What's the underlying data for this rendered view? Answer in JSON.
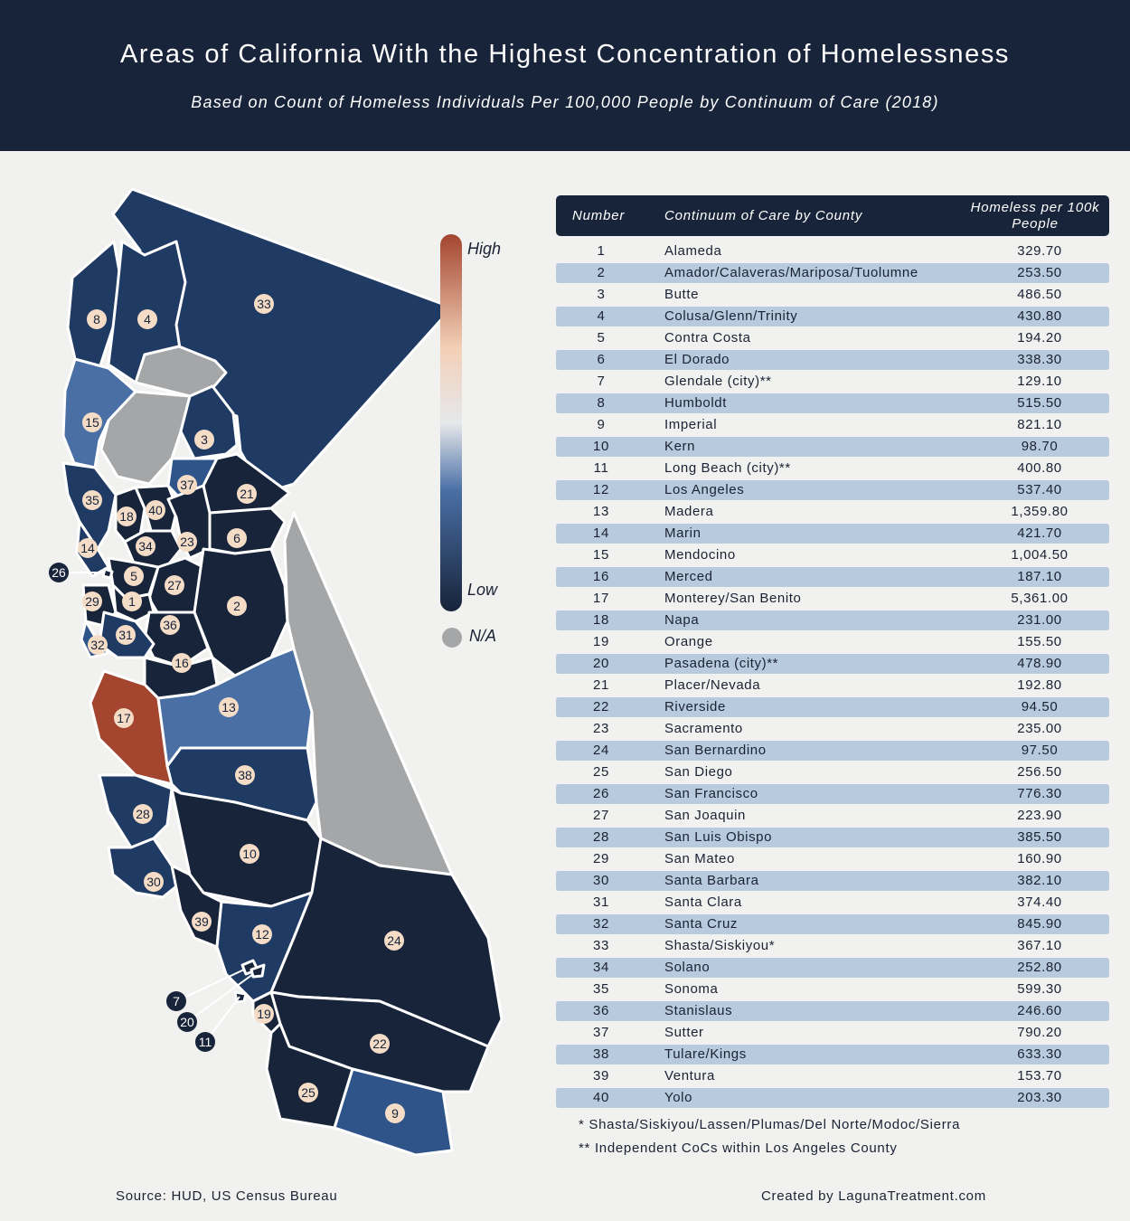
{
  "header": {
    "title": "Areas of California With the Highest Concentration of Homelessness",
    "subtitle": "Based on Count of Homeless Individuals Per 100,000 People by Continuum of Care (2018)"
  },
  "legend": {
    "high_label": "High",
    "low_label": "Low",
    "na_label": "N/A",
    "colors": {
      "high": "#a3452f",
      "peach": "#f3cfb6",
      "neutral": "#e6e8eb",
      "mid": "#4a6fa5",
      "low": "#17243a",
      "na": "#a5a6a8"
    }
  },
  "table": {
    "headers": {
      "number": "Number",
      "county": "Continuum of Care by County",
      "value": "Homeless per 100k People"
    },
    "rows": [
      {
        "number": "1",
        "name": "Alameda",
        "value": "329.70"
      },
      {
        "number": "2",
        "name": "Amador/Calaveras/Mariposa/Tuolumne",
        "value": "253.50"
      },
      {
        "number": "3",
        "name": "Butte",
        "value": "486.50"
      },
      {
        "number": "4",
        "name": "Colusa/Glenn/Trinity",
        "value": "430.80"
      },
      {
        "number": "5",
        "name": "Contra Costa",
        "value": "194.20"
      },
      {
        "number": "6",
        "name": "El Dorado",
        "value": "338.30"
      },
      {
        "number": "7",
        "name": "Glendale (city)**",
        "value": "129.10"
      },
      {
        "number": "8",
        "name": "Humboldt",
        "value": "515.50"
      },
      {
        "number": "9",
        "name": "Imperial",
        "value": "821.10"
      },
      {
        "number": "10",
        "name": "Kern",
        "value": "98.70"
      },
      {
        "number": "11",
        "name": "Long Beach (city)**",
        "value": "400.80"
      },
      {
        "number": "12",
        "name": "Los Angeles",
        "value": "537.40"
      },
      {
        "number": "13",
        "name": "Madera",
        "value": "1,359.80"
      },
      {
        "number": "14",
        "name": "Marin",
        "value": "421.70"
      },
      {
        "number": "15",
        "name": "Mendocino",
        "value": "1,004.50"
      },
      {
        "number": "16",
        "name": "Merced",
        "value": "187.10"
      },
      {
        "number": "17",
        "name": "Monterey/San Benito",
        "value": "5,361.00"
      },
      {
        "number": "18",
        "name": "Napa",
        "value": "231.00"
      },
      {
        "number": "19",
        "name": "Orange",
        "value": "155.50"
      },
      {
        "number": "20",
        "name": "Pasadena (city)**",
        "value": "478.90"
      },
      {
        "number": "21",
        "name": "Placer/Nevada",
        "value": "192.80"
      },
      {
        "number": "22",
        "name": "Riverside",
        "value": "94.50"
      },
      {
        "number": "23",
        "name": "Sacramento",
        "value": "235.00"
      },
      {
        "number": "24",
        "name": "San Bernardino",
        "value": "97.50"
      },
      {
        "number": "25",
        "name": "San Diego",
        "value": "256.50"
      },
      {
        "number": "26",
        "name": "San Francisco",
        "value": "776.30"
      },
      {
        "number": "27",
        "name": "San Joaquin",
        "value": "223.90"
      },
      {
        "number": "28",
        "name": "San Luis Obispo",
        "value": "385.50"
      },
      {
        "number": "29",
        "name": "San Mateo",
        "value": "160.90"
      },
      {
        "number": "30",
        "name": "Santa Barbara",
        "value": "382.10"
      },
      {
        "number": "31",
        "name": "Santa Clara",
        "value": "374.40"
      },
      {
        "number": "32",
        "name": "Santa Cruz",
        "value": "845.90"
      },
      {
        "number": "33",
        "name": "Shasta/Siskiyou*",
        "value": "367.10"
      },
      {
        "number": "34",
        "name": "Solano",
        "value": "252.80"
      },
      {
        "number": "35",
        "name": "Sonoma",
        "value": "599.30"
      },
      {
        "number": "36",
        "name": "Stanislaus",
        "value": "246.60"
      },
      {
        "number": "37",
        "name": "Sutter",
        "value": "790.20"
      },
      {
        "number": "38",
        "name": "Tulare/Kings",
        "value": "633.30"
      },
      {
        "number": "39",
        "name": "Ventura",
        "value": "153.70"
      },
      {
        "number": "40",
        "name": "Yolo",
        "value": "203.30"
      }
    ]
  },
  "notes": {
    "single_star": "* Shasta/Siskiyou/Lassen/Plumas/Del Norte/Modoc/Sierra",
    "double_star": "** Independent CoCs within Los Angeles County"
  },
  "footer": {
    "source": "Source: HUD, US Census Bureau",
    "credit": "Created by LagunaTreatment.com"
  },
  "map": {
    "shade_colors": {
      "dark": "#17243a",
      "navy": "#1f3a63",
      "mid": "#2f5489",
      "light": "#4a6fa5",
      "high": "#a3452f",
      "na": "#a5a6a8"
    },
    "badge_colors": {
      "fill": "#f4dcc6",
      "text": "#17243a",
      "dark_fill": "#17243a",
      "dark_text": "#ffffff"
    },
    "regions": [
      {
        "id": "33",
        "shade": "navy"
      },
      {
        "id": "8",
        "shade": "navy"
      },
      {
        "id": "4",
        "shade": "navy"
      },
      {
        "id": "15",
        "shade": "light"
      },
      {
        "id": "3",
        "shade": "navy"
      },
      {
        "id": "37",
        "shade": "mid"
      },
      {
        "id": "21",
        "shade": "dark"
      },
      {
        "id": "35",
        "shade": "navy"
      },
      {
        "id": "18",
        "shade": "dark"
      },
      {
        "id": "40",
        "shade": "dark"
      },
      {
        "id": "23",
        "shade": "dark"
      },
      {
        "id": "6",
        "shade": "dark"
      },
      {
        "id": "34",
        "shade": "dark"
      },
      {
        "id": "14",
        "shade": "navy"
      },
      {
        "id": "5",
        "shade": "dark"
      },
      {
        "id": "27",
        "shade": "dark"
      },
      {
        "id": "2",
        "shade": "dark"
      },
      {
        "id": "1",
        "shade": "dark"
      },
      {
        "id": "29",
        "shade": "dark"
      },
      {
        "id": "36",
        "shade": "dark"
      },
      {
        "id": "31",
        "shade": "navy"
      },
      {
        "id": "32",
        "shade": "mid"
      },
      {
        "id": "16",
        "shade": "dark"
      },
      {
        "id": "17",
        "shade": "high"
      },
      {
        "id": "13",
        "shade": "light"
      },
      {
        "id": "38",
        "shade": "navy"
      },
      {
        "id": "28",
        "shade": "navy"
      },
      {
        "id": "10",
        "shade": "dark"
      },
      {
        "id": "30",
        "shade": "navy"
      },
      {
        "id": "39",
        "shade": "dark"
      },
      {
        "id": "12",
        "shade": "navy"
      },
      {
        "id": "24",
        "shade": "dark"
      },
      {
        "id": "19",
        "shade": "dark"
      },
      {
        "id": "22",
        "shade": "dark"
      },
      {
        "id": "25",
        "shade": "dark"
      },
      {
        "id": "9",
        "shade": "mid"
      },
      {
        "id": "26",
        "shade": "dark"
      },
      {
        "id": "7",
        "shade": "dark"
      },
      {
        "id": "20",
        "shade": "dark"
      },
      {
        "id": "11",
        "shade": "dark"
      },
      {
        "id": "na-north-1",
        "shade": "na"
      },
      {
        "id": "na-north-2",
        "shade": "na"
      },
      {
        "id": "na-east",
        "shade": "na"
      }
    ]
  }
}
